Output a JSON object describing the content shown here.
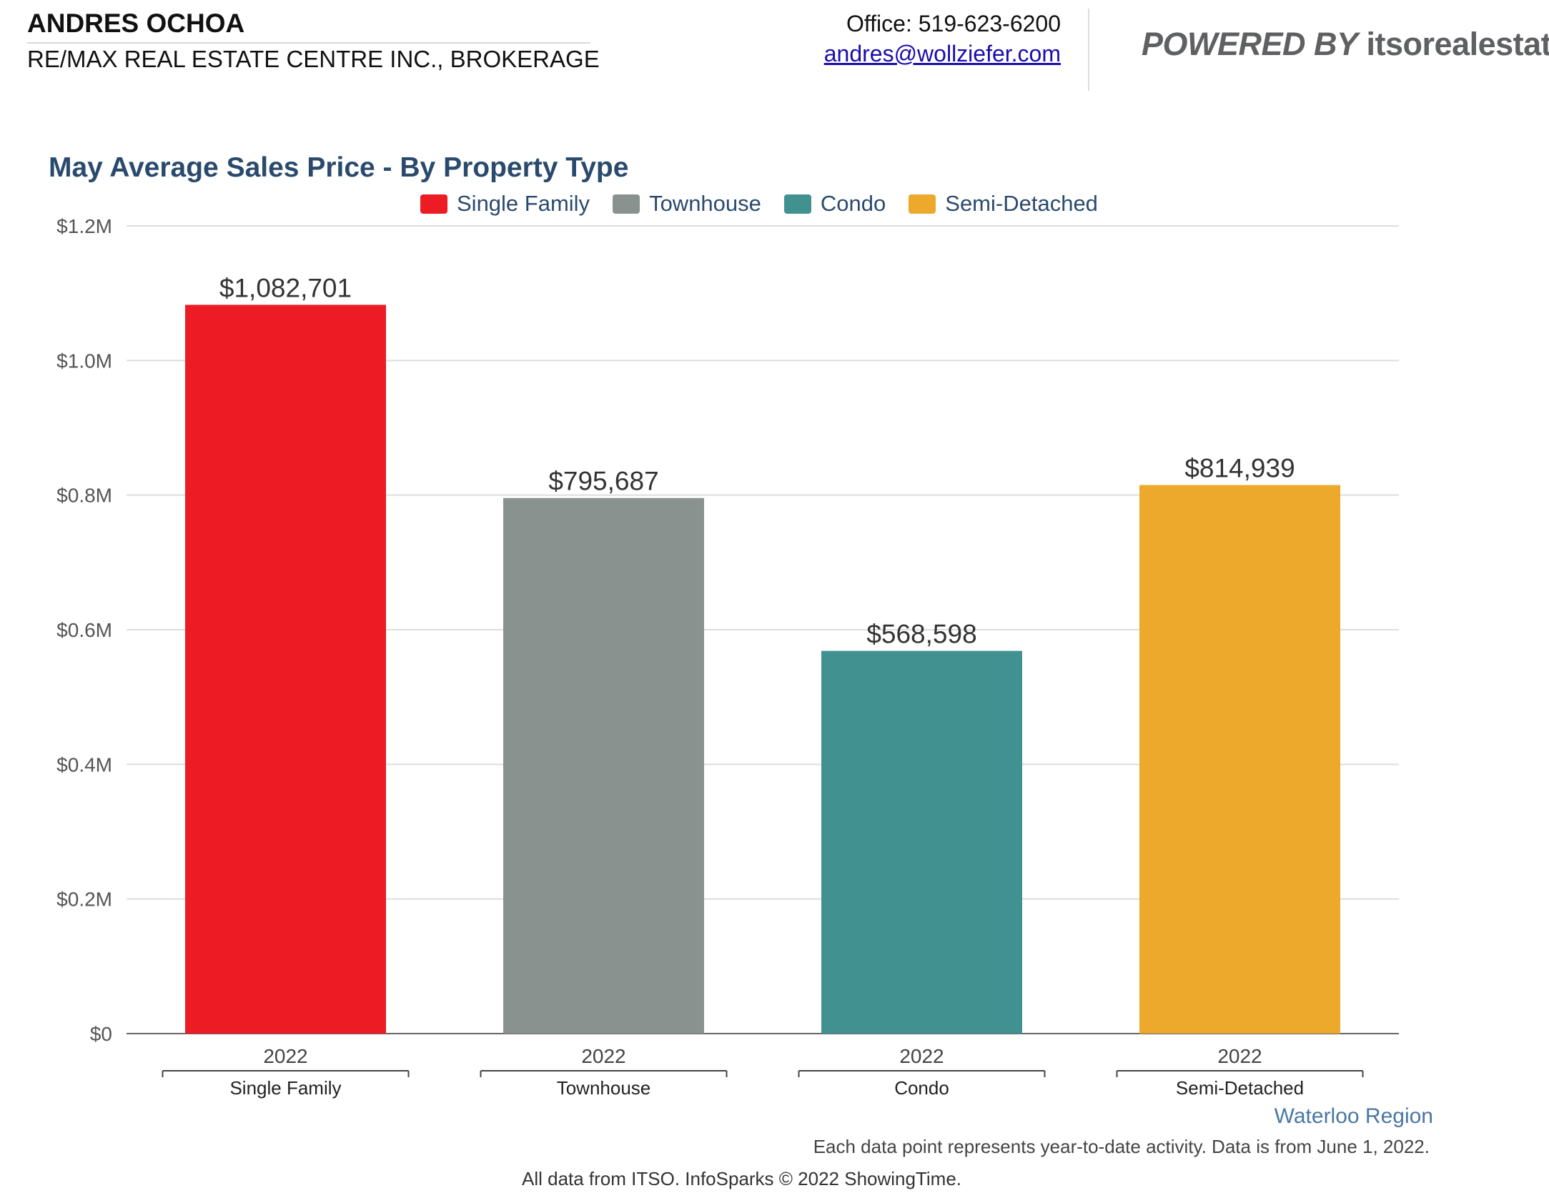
{
  "header": {
    "agent_name": "ANDRES OCHOA",
    "brokerage": "RE/MAX REAL ESTATE CENTRE INC., BROKERAGE",
    "office_phone": "Office: 519-623-6200",
    "email": "andres@wollziefer.com",
    "powered_by_label": "POWERED BY",
    "powered_by_site": "itsorealestate.c"
  },
  "chart_data": {
    "type": "bar",
    "title": "May Average Sales Price - By Property Type",
    "xlabel": "",
    "ylabel": "",
    "ylim": [
      0,
      1200000
    ],
    "y_ticks": [
      {
        "value": 0,
        "label": "$0"
      },
      {
        "value": 200000,
        "label": "$0.2M"
      },
      {
        "value": 400000,
        "label": "$0.4M"
      },
      {
        "value": 600000,
        "label": "$0.6M"
      },
      {
        "value": 800000,
        "label": "$0.8M"
      },
      {
        "value": 1000000,
        "label": "$1.0M"
      },
      {
        "value": 1200000,
        "label": "$1.2M"
      }
    ],
    "grid": true,
    "legend_position": "top",
    "series": [
      {
        "name": "Single Family",
        "color": "#ed1c24",
        "category": "2022",
        "group": "Single Family",
        "value": 1082701,
        "value_label": "$1,082,701"
      },
      {
        "name": "Townhouse",
        "color": "#8a9290",
        "category": "2022",
        "group": "Townhouse",
        "value": 795687,
        "value_label": "$795,687"
      },
      {
        "name": "Condo",
        "color": "#429191",
        "category": "2022",
        "group": "Condo",
        "value": 568598,
        "value_label": "$568,598"
      },
      {
        "name": "Semi-Detached",
        "color": "#eca92b",
        "category": "2022",
        "group": "Semi-Detached",
        "value": 814939,
        "value_label": "$814,939"
      }
    ]
  },
  "footer": {
    "region": "Waterloo Region",
    "note": "Each data point represents year-to-date activity. Data is from June 1, 2022.",
    "source": "All data from ITSO. InfoSparks © 2022 ShowingTime."
  }
}
